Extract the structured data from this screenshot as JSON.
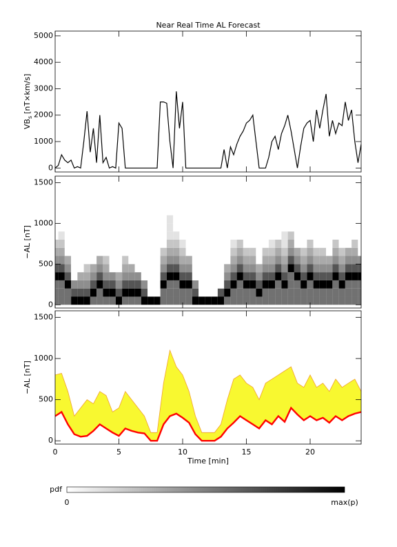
{
  "chart_data": [
    {
      "type": "line",
      "title": "Near Real Time AL Forecast",
      "ylabel": "VB",
      "ylabel_sub": "s",
      "ylabel_unit": "[nT×km/s]",
      "xlim": [
        0,
        24
      ],
      "xticks": [
        0,
        5,
        10,
        15,
        20
      ],
      "ylim": [
        -150,
        5180
      ],
      "yticks": [
        0,
        1000,
        2000,
        3000,
        4000,
        5000
      ],
      "color": "#000000",
      "x": [
        0,
        0.25,
        0.5,
        0.75,
        1,
        1.25,
        1.5,
        1.75,
        2,
        2.25,
        2.5,
        2.75,
        3,
        3.25,
        3.5,
        3.75,
        4,
        4.25,
        4.5,
        4.75,
        5,
        5.25,
        5.5,
        5.75,
        6,
        6.25,
        6.5,
        6.75,
        7,
        7.25,
        7.5,
        7.75,
        8,
        8.25,
        8.5,
        8.75,
        9,
        9.25,
        9.5,
        9.75,
        10,
        10.25,
        10.5,
        10.75,
        11,
        11.25,
        11.5,
        11.75,
        12,
        12.25,
        12.5,
        12.75,
        13,
        13.25,
        13.5,
        13.75,
        14,
        14.25,
        14.5,
        14.75,
        15,
        15.25,
        15.5,
        15.75,
        16,
        16.25,
        16.5,
        16.75,
        17,
        17.25,
        17.5,
        17.75,
        18,
        18.25,
        18.5,
        18.75,
        19,
        19.25,
        19.5,
        19.75,
        20,
        20.25,
        20.5,
        20.75,
        21,
        21.25,
        21.5,
        21.75,
        22,
        22.25,
        22.5,
        22.75,
        23,
        23.25,
        23.5,
        23.75,
        24
      ],
      "values": [
        0,
        100,
        500,
        300,
        200,
        300,
        0,
        50,
        0,
        1000,
        2150,
        600,
        1500,
        200,
        2000,
        200,
        400,
        0,
        50,
        0,
        1700,
        1500,
        0,
        0,
        0,
        0,
        0,
        0,
        0,
        0,
        0,
        0,
        0,
        2500,
        2500,
        2450,
        1000,
        0,
        2900,
        1500,
        2500,
        0,
        0,
        0,
        0,
        0,
        0,
        0,
        0,
        0,
        0,
        0,
        0,
        700,
        0,
        800,
        500,
        900,
        1200,
        1400,
        1700,
        1800,
        2000,
        1000,
        0,
        0,
        0,
        400,
        1000,
        1200,
        700,
        1300,
        1600,
        2000,
        1400,
        700,
        0,
        800,
        1500,
        1700,
        1800,
        1000,
        2200,
        1500,
        2200,
        2800,
        1200,
        1800,
        1300,
        1700,
        1600,
        2500,
        1800,
        2200,
        1000,
        200,
        900
      ]
    },
    {
      "type": "heatmap",
      "ylabel": "−AL [nT]",
      "xlim": [
        0,
        24
      ],
      "xticks": [
        0,
        5,
        10,
        15,
        20
      ],
      "ylim": [
        -40,
        1580
      ],
      "yticks": [
        0,
        500,
        1000,
        1500
      ],
      "colorbar": {
        "label": "pdf",
        "min_label": "0",
        "max_label": "max(p)"
      },
      "zlim": [
        0,
        9
      ],
      "x": [
        0,
        0.5,
        1,
        1.5,
        2,
        2.5,
        3,
        3.5,
        4,
        4.5,
        5,
        5.5,
        6,
        6.5,
        7,
        7.5,
        8,
        8.5,
        9,
        9.5,
        10,
        10.5,
        11,
        11.5,
        12,
        12.5,
        13,
        13.5,
        14,
        14.5,
        15,
        15.5,
        16,
        16.5,
        17,
        17.5,
        18,
        18.5,
        19,
        19.5,
        20,
        20.5,
        21,
        21.5,
        22,
        22.5,
        23,
        23.5,
        24
      ],
      "ybins": [
        0,
        100,
        200,
        300,
        400,
        500,
        600,
        700,
        800,
        900,
        1000,
        1100,
        1200
      ],
      "z": [
        [
          5,
          5,
          5,
          9,
          6,
          4,
          3,
          2,
          0,
          0,
          0,
          0
        ],
        [
          5,
          5,
          5,
          9,
          6,
          4,
          3,
          2,
          1,
          0,
          0,
          0
        ],
        [
          5,
          5,
          9,
          6,
          4,
          3,
          0,
          0,
          0,
          0,
          0,
          0
        ],
        [
          9,
          6,
          4,
          0,
          0,
          0,
          0,
          0,
          0,
          0,
          0,
          0
        ],
        [
          9,
          6,
          4,
          3,
          0,
          0,
          0,
          0,
          0,
          0,
          0,
          0
        ],
        [
          9,
          6,
          4,
          3,
          2,
          0,
          0,
          0,
          0,
          0,
          0,
          0
        ],
        [
          5,
          9,
          6,
          4,
          3,
          0,
          0,
          0,
          0,
          0,
          0,
          0
        ],
        [
          5,
          5,
          9,
          6,
          4,
          3,
          0,
          0,
          0,
          0,
          0,
          0
        ],
        [
          5,
          9,
          6,
          4,
          3,
          2,
          0,
          0,
          0,
          0,
          0,
          0
        ],
        [
          5,
          9,
          6,
          4,
          0,
          0,
          0,
          0,
          0,
          0,
          0,
          0
        ],
        [
          9,
          6,
          4,
          3,
          0,
          0,
          0,
          0,
          0,
          0,
          0,
          0
        ],
        [
          5,
          9,
          6,
          4,
          3,
          2,
          0,
          0,
          0,
          0,
          0,
          0
        ],
        [
          5,
          9,
          6,
          4,
          3,
          0,
          0,
          0,
          0,
          0,
          0,
          0
        ],
        [
          5,
          9,
          6,
          4,
          0,
          0,
          0,
          0,
          0,
          0,
          0,
          0
        ],
        [
          9,
          6,
          4,
          0,
          0,
          0,
          0,
          0,
          0,
          0,
          0,
          0
        ],
        [
          9,
          0,
          0,
          0,
          0,
          0,
          0,
          0,
          0,
          0,
          0,
          0
        ],
        [
          9,
          0,
          0,
          0,
          0,
          0,
          0,
          0,
          0,
          0,
          0,
          0
        ],
        [
          5,
          5,
          9,
          6,
          4,
          3,
          2,
          0,
          0,
          0,
          0,
          0
        ],
        [
          5,
          5,
          5,
          9,
          6,
          4,
          3,
          2,
          1,
          1,
          1,
          0
        ],
        [
          5,
          5,
          5,
          9,
          6,
          4,
          3,
          2,
          1,
          0,
          0,
          0
        ],
        [
          5,
          5,
          9,
          6,
          4,
          3,
          2,
          1,
          0,
          0,
          0,
          0
        ],
        [
          5,
          5,
          9,
          6,
          4,
          3,
          0,
          0,
          0,
          0,
          0,
          0
        ],
        [
          9,
          6,
          4,
          0,
          0,
          0,
          0,
          0,
          0,
          0,
          0,
          0
        ],
        [
          9,
          0,
          0,
          0,
          0,
          0,
          0,
          0,
          0,
          0,
          0,
          0
        ],
        [
          9,
          0,
          0,
          0,
          0,
          0,
          0,
          0,
          0,
          0,
          0,
          0
        ],
        [
          9,
          0,
          0,
          0,
          0,
          0,
          0,
          0,
          0,
          0,
          0,
          0
        ],
        [
          9,
          6,
          0,
          0,
          0,
          0,
          0,
          0,
          0,
          0,
          0,
          0
        ],
        [
          5,
          9,
          6,
          4,
          3,
          0,
          0,
          0,
          0,
          0,
          0,
          0
        ],
        [
          5,
          5,
          9,
          6,
          4,
          3,
          2,
          1,
          0,
          0,
          0,
          0
        ],
        [
          5,
          5,
          5,
          9,
          6,
          4,
          3,
          2,
          0,
          0,
          0,
          0
        ],
        [
          5,
          5,
          9,
          6,
          4,
          3,
          2,
          0,
          0,
          0,
          0,
          0
        ],
        [
          5,
          5,
          9,
          6,
          4,
          3,
          2,
          0,
          0,
          0,
          0,
          0
        ],
        [
          5,
          9,
          6,
          4,
          3,
          0,
          0,
          0,
          0,
          0,
          0,
          0
        ],
        [
          5,
          5,
          9,
          6,
          4,
          3,
          2,
          0,
          0,
          0,
          0,
          0
        ],
        [
          5,
          5,
          9,
          6,
          4,
          3,
          2,
          1,
          0,
          0,
          0,
          0
        ],
        [
          5,
          5,
          5,
          9,
          6,
          4,
          3,
          2,
          0,
          0,
          0,
          0
        ],
        [
          5,
          5,
          9,
          6,
          4,
          3,
          2,
          1,
          1,
          0,
          0,
          0
        ],
        [
          5,
          5,
          5,
          5,
          9,
          6,
          4,
          3,
          2,
          0,
          0,
          0
        ],
        [
          5,
          5,
          5,
          9,
          6,
          4,
          3,
          0,
          0,
          0,
          0,
          0
        ],
        [
          5,
          5,
          9,
          6,
          4,
          3,
          2,
          0,
          0,
          0,
          0,
          0
        ],
        [
          5,
          5,
          5,
          9,
          6,
          4,
          3,
          2,
          0,
          0,
          0,
          0
        ],
        [
          5,
          5,
          9,
          6,
          4,
          3,
          2,
          0,
          0,
          0,
          0,
          0
        ],
        [
          5,
          5,
          9,
          6,
          4,
          3,
          2,
          0,
          0,
          0,
          0,
          0
        ],
        [
          5,
          5,
          9,
          6,
          4,
          3,
          0,
          0,
          0,
          0,
          0,
          0
        ],
        [
          5,
          5,
          5,
          9,
          6,
          4,
          3,
          2,
          0,
          0,
          0,
          0
        ],
        [
          5,
          5,
          9,
          6,
          4,
          3,
          2,
          0,
          0,
          0,
          0,
          0
        ],
        [
          5,
          5,
          5,
          9,
          6,
          4,
          3,
          0,
          0,
          0,
          0,
          0
        ],
        [
          5,
          5,
          5,
          9,
          6,
          4,
          3,
          2,
          0,
          0,
          0,
          0
        ],
        [
          5,
          5,
          5,
          9,
          6,
          4,
          0,
          0,
          0,
          0,
          0,
          0
        ]
      ]
    },
    {
      "type": "band",
      "ylabel": "−AL [nT]",
      "xlabel": "Time [min]",
      "xlim": [
        0,
        24
      ],
      "xticks": [
        0,
        5,
        10,
        15,
        20
      ],
      "ylim": [
        -40,
        1580
      ],
      "yticks": [
        0,
        500,
        1000,
        1500
      ],
      "fill": "#f8f830",
      "x": [
        0,
        0.5,
        1,
        1.5,
        2,
        2.5,
        3,
        3.5,
        4,
        4.5,
        5,
        5.5,
        6,
        6.5,
        7,
        7.5,
        8,
        8.5,
        9,
        9.5,
        10,
        10.5,
        11,
        11.5,
        12,
        12.5,
        13,
        13.5,
        14,
        14.5,
        15,
        15.5,
        16,
        16.5,
        17,
        17.5,
        18,
        18.5,
        19,
        19.5,
        20,
        20.5,
        21,
        21.5,
        22,
        22.5,
        23,
        23.5,
        24
      ],
      "series": [
        {
          "color": "#f0a030",
          "values": [
            800,
            820,
            600,
            300,
            400,
            500,
            450,
            600,
            550,
            350,
            400,
            600,
            500,
            400,
            300,
            100,
            100,
            700,
            1100,
            900,
            800,
            600,
            300,
            100,
            100,
            100,
            200,
            500,
            750,
            800,
            700,
            650,
            500,
            700,
            750,
            800,
            850,
            900,
            700,
            650,
            800,
            650,
            700,
            600,
            750,
            650,
            700,
            750,
            600
          ]
        },
        {
          "color": "#ff0000",
          "values": [
            300,
            350,
            200,
            80,
            50,
            60,
            120,
            200,
            150,
            100,
            60,
            150,
            120,
            100,
            90,
            0,
            0,
            200,
            300,
            330,
            280,
            220,
            80,
            0,
            0,
            0,
            50,
            150,
            220,
            300,
            250,
            200,
            150,
            250,
            200,
            300,
            230,
            400,
            320,
            250,
            300,
            250,
            280,
            220,
            300,
            250,
            300,
            330,
            350
          ]
        }
      ]
    }
  ]
}
